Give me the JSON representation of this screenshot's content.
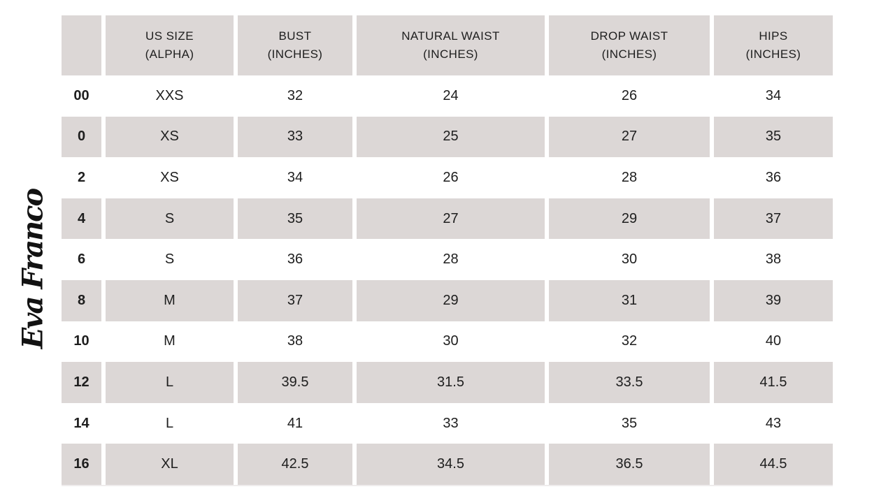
{
  "colors": {
    "stripe": "#dcd7d6",
    "text": "#1e1e1e",
    "background": "#ffffff"
  },
  "logo": {
    "text": "Eva Franco"
  },
  "table": {
    "columns": [
      {
        "line1": "",
        "line2": ""
      },
      {
        "line1": "US SIZE",
        "line2": "(ALPHA)"
      },
      {
        "line1": "BUST",
        "line2": "(INCHES)"
      },
      {
        "line1": "NATURAL WAIST",
        "line2": "(INCHES)"
      },
      {
        "line1": "DROP WAIST",
        "line2": "(INCHES)"
      },
      {
        "line1": "HIPS",
        "line2": "(INCHES)"
      }
    ],
    "rows": [
      {
        "us_size": "00",
        "alpha": "XXS",
        "bust": "32",
        "natural_waist": "24",
        "drop_waist": "26",
        "hips": "34"
      },
      {
        "us_size": "0",
        "alpha": "XS",
        "bust": "33",
        "natural_waist": "25",
        "drop_waist": "27",
        "hips": "35"
      },
      {
        "us_size": "2",
        "alpha": "XS",
        "bust": "34",
        "natural_waist": "26",
        "drop_waist": "28",
        "hips": "36"
      },
      {
        "us_size": "4",
        "alpha": "S",
        "bust": "35",
        "natural_waist": "27",
        "drop_waist": "29",
        "hips": "37"
      },
      {
        "us_size": "6",
        "alpha": "S",
        "bust": "36",
        "natural_waist": "28",
        "drop_waist": "30",
        "hips": "38"
      },
      {
        "us_size": "8",
        "alpha": "M",
        "bust": "37",
        "natural_waist": "29",
        "drop_waist": "31",
        "hips": "39"
      },
      {
        "us_size": "10",
        "alpha": "M",
        "bust": "38",
        "natural_waist": "30",
        "drop_waist": "32",
        "hips": "40"
      },
      {
        "us_size": "12",
        "alpha": "L",
        "bust": "39.5",
        "natural_waist": "31.5",
        "drop_waist": "33.5",
        "hips": "41.5"
      },
      {
        "us_size": "14",
        "alpha": "L",
        "bust": "41",
        "natural_waist": "33",
        "drop_waist": "35",
        "hips": "43"
      },
      {
        "us_size": "16",
        "alpha": "XL",
        "bust": "42.5",
        "natural_waist": "34.5",
        "drop_waist": "36.5",
        "hips": "44.5"
      }
    ]
  },
  "chart_data": {
    "type": "table",
    "columns": [
      "US SIZE",
      "US SIZE (ALPHA)",
      "BUST (INCHES)",
      "NATURAL WAIST (INCHES)",
      "DROP WAIST (INCHES)",
      "HIPS (INCHES)"
    ],
    "rows": [
      [
        "00",
        "XXS",
        32,
        24,
        26,
        34
      ],
      [
        "0",
        "XS",
        33,
        25,
        27,
        35
      ],
      [
        "2",
        "XS",
        34,
        26,
        28,
        36
      ],
      [
        "4",
        "S",
        35,
        27,
        29,
        37
      ],
      [
        "6",
        "S",
        36,
        28,
        30,
        38
      ],
      [
        "8",
        "M",
        37,
        29,
        31,
        39
      ],
      [
        "10",
        "M",
        38,
        30,
        32,
        40
      ],
      [
        "12",
        "L",
        39.5,
        31.5,
        33.5,
        41.5
      ],
      [
        "14",
        "L",
        41,
        33,
        35,
        43
      ],
      [
        "16",
        "XL",
        42.5,
        34.5,
        36.5,
        44.5
      ]
    ]
  }
}
